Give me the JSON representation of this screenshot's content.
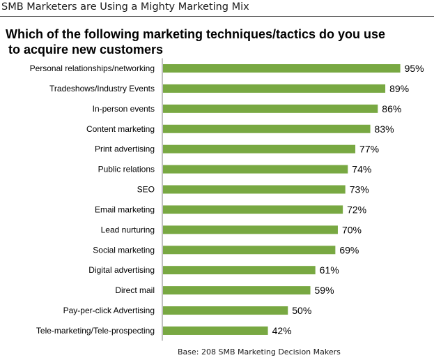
{
  "header": {
    "title": "SMB Marketers are Using a Mighty Marketing Mix"
  },
  "question": {
    "line1": "Which of the following marketing techniques/tactics do you use",
    "line2": "to acquire new customers"
  },
  "footnote": "Base: 208 SMB Marketing Decision Makers",
  "colors": {
    "bar": "#78a842",
    "axis": "#808080"
  },
  "chart_data": {
    "type": "bar",
    "orientation": "horizontal",
    "categories": [
      "Personal relationships/networking",
      "Tradeshows/Industry Events",
      "In-person events",
      "Content marketing",
      "Print advertising",
      "Public relations",
      "SEO",
      "Email marketing",
      "Lead nurturing",
      "Social marketing",
      "Digital advertising",
      "Direct mail",
      "Pay-per-click Advertising",
      "Tele-marketing/Tele-prospecting"
    ],
    "values": [
      95,
      89,
      86,
      83,
      77,
      74,
      73,
      72,
      70,
      69,
      61,
      59,
      50,
      42
    ],
    "value_labels": [
      "95%",
      "89%",
      "86%",
      "83%",
      "77%",
      "74%",
      "73%",
      "72%",
      "70%",
      "69%",
      "61%",
      "59%",
      "50%",
      "42%"
    ],
    "xlim": [
      0,
      100
    ],
    "grid": false,
    "legend": "none"
  }
}
